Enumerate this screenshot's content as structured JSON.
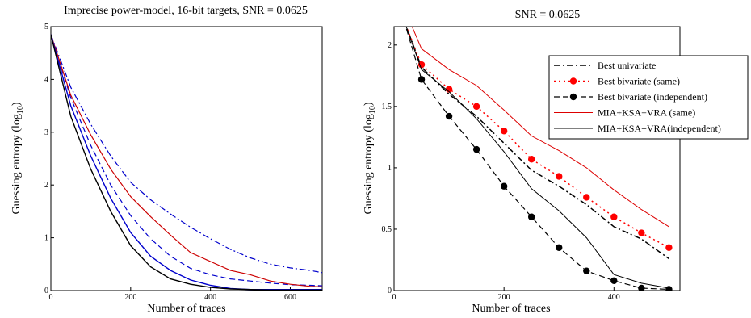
{
  "chart_data": [
    {
      "type": "line",
      "title": "Imprecise power-model, 16-bit targets, SNR = 0.0625",
      "xlabel": "Number of traces",
      "ylabel": "Guessing entropy (log",
      "ylabel_sub": "10",
      "ylabel_close": ")",
      "xlim": [
        0,
        680
      ],
      "ylim": [
        0,
        5
      ],
      "xticks": [
        {
          "v": 0,
          "label": "0"
        },
        {
          "v": 200,
          "label": "200"
        },
        {
          "v": 400,
          "label": "400"
        },
        {
          "v": 600,
          "label": "600"
        }
      ],
      "yticks": [
        {
          "v": 0,
          "label": "0"
        },
        {
          "v": 1,
          "label": "1"
        },
        {
          "v": 2,
          "label": "2"
        },
        {
          "v": 3,
          "label": "3"
        },
        {
          "v": 4,
          "label": "4"
        },
        {
          "v": 5,
          "label": "5"
        }
      ],
      "grid": false,
      "series": [
        {
          "color": "#0000cc",
          "dash": "8,3,2,3",
          "width": 1.2,
          "x": [
            0,
            50,
            100,
            150,
            200,
            250,
            300,
            350,
            400,
            450,
            500,
            550,
            600,
            650,
            680
          ],
          "y": [
            4.85,
            3.85,
            3.15,
            2.55,
            2.05,
            1.72,
            1.45,
            1.2,
            0.98,
            0.78,
            0.62,
            0.5,
            0.43,
            0.38,
            0.34
          ]
        },
        {
          "color": "#0000cc",
          "dash": "7,4",
          "width": 1.2,
          "x": [
            0,
            50,
            100,
            150,
            200,
            250,
            300,
            350,
            400,
            450,
            500,
            550,
            600,
            650,
            680
          ],
          "y": [
            4.85,
            3.65,
            2.75,
            2.0,
            1.42,
            0.98,
            0.65,
            0.42,
            0.3,
            0.22,
            0.18,
            0.14,
            0.11,
            0.1,
            0.09
          ]
        },
        {
          "color": "#cc0000",
          "dash": "",
          "width": 1.2,
          "x": [
            0,
            50,
            100,
            150,
            200,
            250,
            300,
            350,
            400,
            450,
            500,
            550,
            600,
            650,
            680
          ],
          "y": [
            4.85,
            3.7,
            2.95,
            2.3,
            1.78,
            1.4,
            1.05,
            0.72,
            0.55,
            0.38,
            0.3,
            0.18,
            0.12,
            0.08,
            0.07
          ]
        },
        {
          "color": "#0000cc",
          "dash": "",
          "width": 1.4,
          "x": [
            0,
            50,
            100,
            150,
            200,
            250,
            300,
            350,
            400,
            450,
            500,
            550,
            600,
            650,
            680
          ],
          "y": [
            4.85,
            3.5,
            2.55,
            1.75,
            1.1,
            0.65,
            0.38,
            0.2,
            0.1,
            0.04,
            0.02,
            0.02,
            0.02,
            0.02,
            0.02
          ]
        },
        {
          "color": "#000000",
          "dash": "",
          "width": 1.4,
          "x": [
            0,
            50,
            100,
            150,
            200,
            250,
            300,
            350,
            400,
            450,
            500,
            550,
            600,
            650,
            680
          ],
          "y": [
            4.85,
            3.3,
            2.3,
            1.5,
            0.85,
            0.45,
            0.22,
            0.12,
            0.06,
            0.03,
            0.02,
            0.01,
            0.01,
            0.01,
            0.01
          ]
        }
      ]
    },
    {
      "type": "line",
      "title": "SNR = 0.0625",
      "xlabel": "Number of traces",
      "ylabel": "Guessing entropy (log",
      "ylabel_sub": "10",
      "ylabel_close": ")",
      "xlim": [
        0,
        520
      ],
      "ylim": [
        0,
        2.15
      ],
      "xticks": [
        {
          "v": 0,
          "label": "0"
        },
        {
          "v": 200,
          "label": "200"
        },
        {
          "v": 400,
          "label": "400"
        }
      ],
      "yticks": [
        {
          "v": 0,
          "label": "0"
        },
        {
          "v": 0.5,
          "label": "0.5"
        },
        {
          "v": 1,
          "label": "1"
        },
        {
          "v": 1.5,
          "label": "1.5"
        },
        {
          "v": 2,
          "label": "2"
        }
      ],
      "grid": false,
      "legend": {
        "placement": "top-right",
        "items": [
          "Best univariate",
          "Best bivariate (same)",
          "Best bivariate (independent)",
          "MIA+KSA+VRA (same)",
          "MIA+KSA+VRA(independent)"
        ]
      },
      "series": [
        {
          "name": "Best univariate",
          "color": "#000000",
          "dash": "8,3,2,3",
          "width": 1.5,
          "marker": "",
          "x": [
            18,
            50,
            100,
            150,
            200,
            250,
            300,
            350,
            400,
            450,
            500
          ],
          "y": [
            2.2,
            1.82,
            1.6,
            1.42,
            1.2,
            0.98,
            0.85,
            0.7,
            0.52,
            0.42,
            0.26
          ]
        },
        {
          "name": "Best bivariate (same)",
          "color": "#ff0000",
          "dash": "2,4",
          "width": 1.5,
          "marker": "#ff0000",
          "x": [
            18,
            50,
            100,
            150,
            200,
            250,
            300,
            350,
            400,
            450,
            500
          ],
          "y": [
            2.2,
            1.84,
            1.64,
            1.5,
            1.3,
            1.07,
            0.93,
            0.76,
            0.6,
            0.47,
            0.35
          ]
        },
        {
          "name": "Best bivariate (independent)",
          "color": "#000000",
          "dash": "7,4",
          "width": 1.2,
          "marker": "#000000",
          "x": [
            18,
            50,
            100,
            150,
            200,
            250,
            300,
            350,
            400,
            450,
            500
          ],
          "y": [
            2.2,
            1.72,
            1.42,
            1.15,
            0.85,
            0.6,
            0.35,
            0.16,
            0.08,
            0.02,
            0.01
          ]
        },
        {
          "name": "MIA+KSA+VRA (same)",
          "color": "#dd0000",
          "dash": "",
          "width": 1.0,
          "marker": "",
          "x": [
            28,
            50,
            100,
            150,
            200,
            250,
            300,
            350,
            400,
            450,
            500
          ],
          "y": [
            2.2,
            1.97,
            1.8,
            1.67,
            1.47,
            1.26,
            1.14,
            1.0,
            0.82,
            0.66,
            0.52
          ]
        },
        {
          "name": "MIA+KSA+VRA(independent)",
          "color": "#000000",
          "dash": "",
          "width": 1.0,
          "marker": "",
          "x": [
            18,
            50,
            100,
            150,
            200,
            250,
            300,
            350,
            400,
            450,
            500
          ],
          "y": [
            2.2,
            1.8,
            1.62,
            1.4,
            1.13,
            0.83,
            0.65,
            0.43,
            0.13,
            0.06,
            0.02
          ]
        }
      ]
    }
  ]
}
